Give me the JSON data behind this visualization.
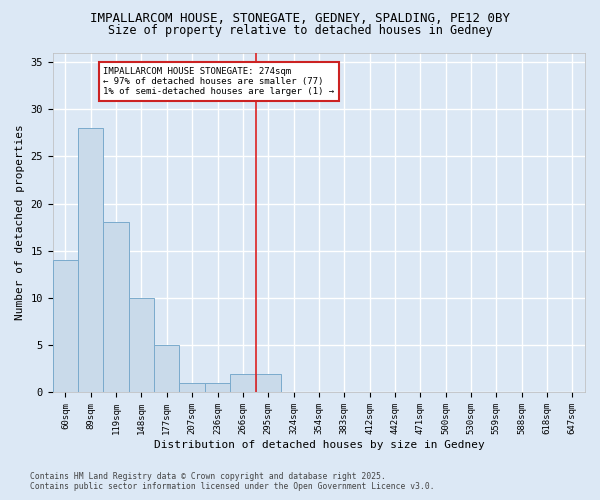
{
  "title1": "IMPALLARCOM HOUSE, STONEGATE, GEDNEY, SPALDING, PE12 0BY",
  "title2": "Size of property relative to detached houses in Gedney",
  "xlabel": "Distribution of detached houses by size in Gedney",
  "ylabel": "Number of detached properties",
  "footer": "Contains HM Land Registry data © Crown copyright and database right 2025.\nContains public sector information licensed under the Open Government Licence v3.0.",
  "categories": [
    "60sqm",
    "89sqm",
    "119sqm",
    "148sqm",
    "177sqm",
    "207sqm",
    "236sqm",
    "266sqm",
    "295sqm",
    "324sqm",
    "354sqm",
    "383sqm",
    "412sqm",
    "442sqm",
    "471sqm",
    "500sqm",
    "530sqm",
    "559sqm",
    "588sqm",
    "618sqm",
    "647sqm"
  ],
  "values": [
    14,
    28,
    18,
    10,
    5,
    1,
    1,
    2,
    2,
    0,
    0,
    0,
    0,
    0,
    0,
    0,
    0,
    0,
    0,
    0,
    0
  ],
  "bar_color": "#c9daea",
  "bar_edge_color": "#7aaacc",
  "vline_x": 7.5,
  "vline_color": "#dd2222",
  "annotation_text": "IMPALLARCOM HOUSE STONEGATE: 274sqm\n← 97% of detached houses are smaller (77)\n1% of semi-detached houses are larger (1) →",
  "annotation_box_color": "#ffffff",
  "annotation_box_edge_color": "#cc2222",
  "ylim": [
    0,
    36
  ],
  "yticks": [
    0,
    5,
    10,
    15,
    20,
    25,
    30,
    35
  ],
  "bg_color": "#dce8f5",
  "plot_bg_color": "#dce8f5",
  "grid_color": "#ffffff",
  "title_fontsize": 9,
  "subtitle_fontsize": 8.5,
  "tick_fontsize": 6.5,
  "label_fontsize": 8,
  "footer_fontsize": 5.8
}
